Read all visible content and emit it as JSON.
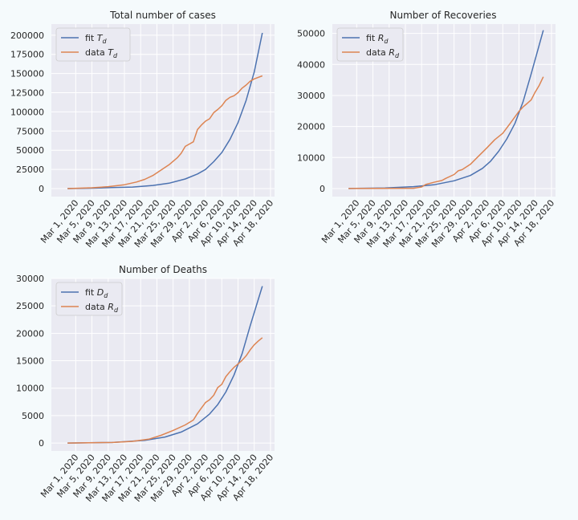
{
  "colors": {
    "page_background": "#f5fafc",
    "plot_background": "#eaeaf2",
    "grid": "#ffffff",
    "fit_line": "#4c72b0",
    "data_line": "#dd8452"
  },
  "chart_data": [
    {
      "type": "line",
      "title": "Total number of cases",
      "xlabel": "",
      "ylabel": "",
      "grid": true,
      "legend_position": "top-left",
      "ylim": [
        -10500,
        214500
      ],
      "y_ticks": [
        0,
        25000,
        50000,
        75000,
        100000,
        125000,
        150000,
        175000,
        200000
      ],
      "y_tick_labels": [
        "0",
        "25000",
        "50000",
        "75000",
        "100000",
        "125000",
        "150000",
        "175000",
        "200000"
      ],
      "x_tick_labels": [
        "Mar 1, 2020",
        "Mar 5, 2020",
        "Mar 9, 2020",
        "Mar 13, 2020",
        "Mar 17, 2020",
        "Mar 21, 2020",
        "Mar 25, 2020",
        "Mar 29, 2020",
        "Apr 2, 2020",
        "Apr 6, 2020",
        "Apr 10, 2020",
        "Apr 14, 2020",
        "Apr 18, 2020"
      ],
      "series": [
        {
          "name": "fit T_d",
          "legend_text": "fit ",
          "legend_sym": "T",
          "legend_sub": "d",
          "color": "#4c72b0",
          "points": [
            [
              "2020-02-28",
              0
            ],
            [
              "2020-03-05",
              500
            ],
            [
              "2020-03-10",
              1200
            ],
            [
              "2020-03-15",
              2000
            ],
            [
              "2020-03-20",
              4000
            ],
            [
              "2020-03-24",
              7000
            ],
            [
              "2020-03-28",
              12500
            ],
            [
              "2020-03-31",
              19000
            ],
            [
              "2020-04-02",
              25000
            ],
            [
              "2020-04-04",
              35000
            ],
            [
              "2020-04-06",
              47000
            ],
            [
              "2020-04-08",
              64000
            ],
            [
              "2020-04-10",
              86000
            ],
            [
              "2020-04-12",
              115000
            ],
            [
              "2020-04-14",
              152000
            ],
            [
              "2020-04-16",
              203000
            ]
          ]
        },
        {
          "name": "data T_d",
          "legend_text": "data ",
          "legend_sym": "T",
          "legend_sub": "d",
          "color": "#dd8452",
          "points": [
            [
              "2020-02-28",
              0
            ],
            [
              "2020-03-05",
              1000
            ],
            [
              "2020-03-09",
              2500
            ],
            [
              "2020-03-13",
              5000
            ],
            [
              "2020-03-16",
              8500
            ],
            [
              "2020-03-18",
              12000
            ],
            [
              "2020-03-20",
              17000
            ],
            [
              "2020-03-22",
              24000
            ],
            [
              "2020-03-24",
              31000
            ],
            [
              "2020-03-26",
              40000
            ],
            [
              "2020-03-27",
              46000
            ],
            [
              "2020-03-28",
              55000
            ],
            [
              "2020-03-29",
              58000
            ],
            [
              "2020-03-30",
              61000
            ],
            [
              "2020-03-31",
              77000
            ],
            [
              "2020-04-01",
              83000
            ],
            [
              "2020-04-02",
              88000
            ],
            [
              "2020-04-03",
              91000
            ],
            [
              "2020-04-04",
              99000
            ],
            [
              "2020-04-05",
              103000
            ],
            [
              "2020-04-06",
              108000
            ],
            [
              "2020-04-07",
              115000
            ],
            [
              "2020-04-08",
              119000
            ],
            [
              "2020-04-09",
              121000
            ],
            [
              "2020-04-10",
              125000
            ],
            [
              "2020-04-11",
              131000
            ],
            [
              "2020-04-12",
              135000
            ],
            [
              "2020-04-13",
              140000
            ],
            [
              "2020-04-14",
              143000
            ],
            [
              "2020-04-16",
              147000
            ]
          ]
        }
      ]
    },
    {
      "type": "line",
      "title": "Number of Recoveries",
      "xlabel": "",
      "ylabel": "",
      "grid": true,
      "legend_position": "top-left",
      "ylim": [
        -2600,
        53000
      ],
      "y_ticks": [
        0,
        10000,
        20000,
        30000,
        40000,
        50000
      ],
      "y_tick_labels": [
        "0",
        "10000",
        "20000",
        "30000",
        "40000",
        "50000"
      ],
      "x_tick_labels": [
        "Mar 1, 2020",
        "Mar 5, 2020",
        "Mar 9, 2020",
        "Mar 13, 2020",
        "Mar 17, 2020",
        "Mar 21, 2020",
        "Mar 25, 2020",
        "Mar 29, 2020",
        "Apr 2, 2020",
        "Apr 6, 2020",
        "Apr 10, 2020",
        "Apr 14, 2020",
        "Apr 18, 2020"
      ],
      "series": [
        {
          "name": "fit R_d",
          "legend_text": "fit ",
          "legend_sym": "R",
          "legend_sub": "d",
          "color": "#4c72b0",
          "points": [
            [
              "2020-02-28",
              0
            ],
            [
              "2020-03-08",
              200
            ],
            [
              "2020-03-15",
              600
            ],
            [
              "2020-03-20",
              1200
            ],
            [
              "2020-03-25",
              2500
            ],
            [
              "2020-03-29",
              4200
            ],
            [
              "2020-04-01",
              6500
            ],
            [
              "2020-04-03",
              8800
            ],
            [
              "2020-04-05",
              12000
            ],
            [
              "2020-04-07",
              16000
            ],
            [
              "2020-04-09",
              21000
            ],
            [
              "2020-04-11",
              28000
            ],
            [
              "2020-04-13",
              37000
            ],
            [
              "2020-04-16",
              51000
            ]
          ]
        },
        {
          "name": "data R_d",
          "legend_text": "data ",
          "legend_sym": "R",
          "legend_sub": "d",
          "color": "#dd8452",
          "points": [
            [
              "2020-02-28",
              0
            ],
            [
              "2020-03-15",
              100
            ],
            [
              "2020-03-17",
              500
            ],
            [
              "2020-03-18",
              1300
            ],
            [
              "2020-03-20",
              2000
            ],
            [
              "2020-03-22",
              2600
            ],
            [
              "2020-03-23",
              3300
            ],
            [
              "2020-03-25",
              4500
            ],
            [
              "2020-03-26",
              5700
            ],
            [
              "2020-03-27",
              6100
            ],
            [
              "2020-03-29",
              7800
            ],
            [
              "2020-03-31",
              10400
            ],
            [
              "2020-04-02",
              13000
            ],
            [
              "2020-04-04",
              15700
            ],
            [
              "2020-04-06",
              17800
            ],
            [
              "2020-04-08",
              21300
            ],
            [
              "2020-04-10",
              24900
            ],
            [
              "2020-04-11",
              26300
            ],
            [
              "2020-04-12",
              27400
            ],
            [
              "2020-04-13",
              28600
            ],
            [
              "2020-04-14",
              31100
            ],
            [
              "2020-04-15",
              33300
            ],
            [
              "2020-04-16",
              36000
            ]
          ]
        }
      ]
    },
    {
      "type": "line",
      "title": "Number of Deaths",
      "xlabel": "",
      "ylabel": "",
      "grid": true,
      "legend_position": "top-left",
      "ylim": [
        -1450,
        30000
      ],
      "y_ticks": [
        0,
        5000,
        10000,
        15000,
        20000,
        25000,
        30000
      ],
      "y_tick_labels": [
        "0",
        "5000",
        "10000",
        "15000",
        "20000",
        "25000",
        "30000"
      ],
      "x_tick_labels": [
        "Mar 1, 2020",
        "Mar 5, 2020",
        "Mar 9, 2020",
        "Mar 13, 2020",
        "Mar 17, 2020",
        "Mar 21, 2020",
        "Mar 25, 2020",
        "Mar 29, 2020",
        "Apr 2, 2020",
        "Apr 6, 2020",
        "Apr 10, 2020",
        "Apr 14, 2020",
        "Apr 18, 2020"
      ],
      "series": [
        {
          "name": "fit D_d",
          "legend_text": "fit ",
          "legend_sym": "D",
          "legend_sub": "d",
          "color": "#4c72b0",
          "points": [
            [
              "2020-02-28",
              0
            ],
            [
              "2020-03-10",
              100
            ],
            [
              "2020-03-18",
              500
            ],
            [
              "2020-03-23",
              1100
            ],
            [
              "2020-03-27",
              2000
            ],
            [
              "2020-03-31",
              3500
            ],
            [
              "2020-04-03",
              5300
            ],
            [
              "2020-04-05",
              7000
            ],
            [
              "2020-04-07",
              9300
            ],
            [
              "2020-04-09",
              12400
            ],
            [
              "2020-04-11",
              16300
            ],
            [
              "2020-04-13",
              21400
            ],
            [
              "2020-04-16",
              28600
            ]
          ]
        },
        {
          "name": "data R_d",
          "legend_text": "data ",
          "legend_sym": "R",
          "legend_sub": "d",
          "color": "#dd8452",
          "points": [
            [
              "2020-02-28",
              0
            ],
            [
              "2020-03-10",
              100
            ],
            [
              "2020-03-15",
              300
            ],
            [
              "2020-03-19",
              700
            ],
            [
              "2020-03-22",
              1400
            ],
            [
              "2020-03-25",
              2300
            ],
            [
              "2020-03-28",
              3300
            ],
            [
              "2020-03-30",
              4200
            ],
            [
              "2020-03-31",
              5400
            ],
            [
              "2020-04-01",
              6400
            ],
            [
              "2020-04-02",
              7400
            ],
            [
              "2020-04-03",
              7900
            ],
            [
              "2020-04-04",
              8700
            ],
            [
              "2020-04-05",
              10100
            ],
            [
              "2020-04-06",
              10700
            ],
            [
              "2020-04-07",
              12100
            ],
            [
              "2020-04-08",
              13000
            ],
            [
              "2020-04-09",
              13800
            ],
            [
              "2020-04-10",
              14400
            ],
            [
              "2020-04-11",
              15100
            ],
            [
              "2020-04-12",
              15900
            ],
            [
              "2020-04-13",
              17000
            ],
            [
              "2020-04-14",
              17900
            ],
            [
              "2020-04-15",
              18600
            ],
            [
              "2020-04-16",
              19200
            ]
          ]
        }
      ]
    }
  ]
}
